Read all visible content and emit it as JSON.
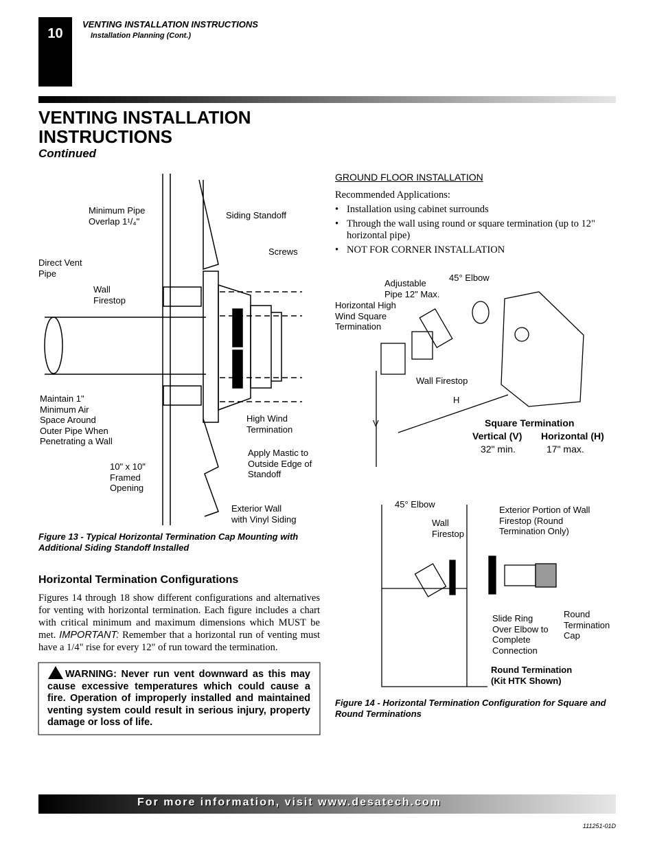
{
  "header": {
    "page_number": "10",
    "section": "VENTING INSTALLATION INSTRUCTIONS",
    "subsection": "Installation Planning (Cont.)"
  },
  "title": {
    "lines": [
      "VENTING INSTALLATION",
      "INSTRUCTIONS"
    ],
    "subtitle": "Continued"
  },
  "figure13": {
    "labels": [
      [
        "Minimum Pipe",
        "Overlap 1¹/₄\""
      ],
      [
        "Siding Standoff"
      ],
      [
        "Screws"
      ],
      [
        "Direct Vent",
        "Pipe"
      ],
      [
        "Wall",
        "Firestop"
      ],
      [
        "Maintain 1\"",
        "Minimum Air",
        "Space Around",
        "Outer Pipe When",
        "Penetrating a Wall"
      ],
      [
        "High Wind",
        "Termination"
      ],
      [
        "Apply Mastic to",
        "Outside Edge of",
        "Standoff"
      ],
      [
        "10\" x 10\"",
        "Framed",
        "Opening"
      ],
      [
        "Exterior Wall",
        "with Vinyl Siding"
      ]
    ],
    "caption": "Figure 13 - Typical Horizontal Termination Cap Mounting with Additional Siding Standoff Installed"
  },
  "configurations": {
    "heading": "Horizontal Termination Configurations",
    "paragraph": {
      "text_before": "Figures 14 through 18 show different configurations and alternatives for venting with horizontal termination. Each figure includes a chart with critical minimum and maximum dimensions which MUST be met.",
      "important": "IMPORTANT:",
      "text_after": "Remember that a horizontal run of venting must have a 1/4\" rise for every 12\" of run toward the termination."
    },
    "warning": "WARNING: Never run vent downward as this may cause excessive temperatures which could cause a fire. Operation of improperly installed and maintained venting system could result in serious injury, property damage or loss of life."
  },
  "ground_floor": {
    "heading": "GROUND FLOOR INSTALLATION",
    "intro": "Recommended Applications:",
    "bullets": [
      "Installation using cabinet surrounds",
      "Through the wall using round or square termination (up to 12\" horizontal pipe)",
      "NOT FOR CORNER INSTALLATION"
    ]
  },
  "figure14": {
    "square_labels": [
      [
        "Adjustable",
        "Pipe 12\" Max."
      ],
      [
        "45° Elbow"
      ],
      [
        "Horizontal High",
        "Wind Square",
        "Termination"
      ],
      [
        "Wall Firestop"
      ],
      [
        "H"
      ],
      [
        "V"
      ]
    ],
    "square_table": {
      "title": "Square Termination",
      "headers": [
        "Vertical (V)",
        "Horizontal (H)"
      ],
      "values": [
        "32\" min.",
        "17\" max."
      ]
    },
    "round_labels": [
      [
        "45° Elbow"
      ],
      [
        "Wall",
        "Firestop"
      ],
      [
        "Exterior Portion of Wall",
        "Firestop (Round",
        "Termination Only)"
      ],
      [
        "Slide Ring",
        "Over Elbow to",
        "Complete",
        "Connection"
      ],
      [
        "Round",
        "Termination",
        "Cap"
      ]
    ],
    "round_title": [
      "Round Termination",
      "(Kit HTK Shown)"
    ],
    "caption": "Figure 14 - Horizontal Termination Configuration for Square and Round Terminations"
  },
  "footer": {
    "text": "For more information, visit www.desatech.com",
    "doc_number": "111251-01D"
  }
}
